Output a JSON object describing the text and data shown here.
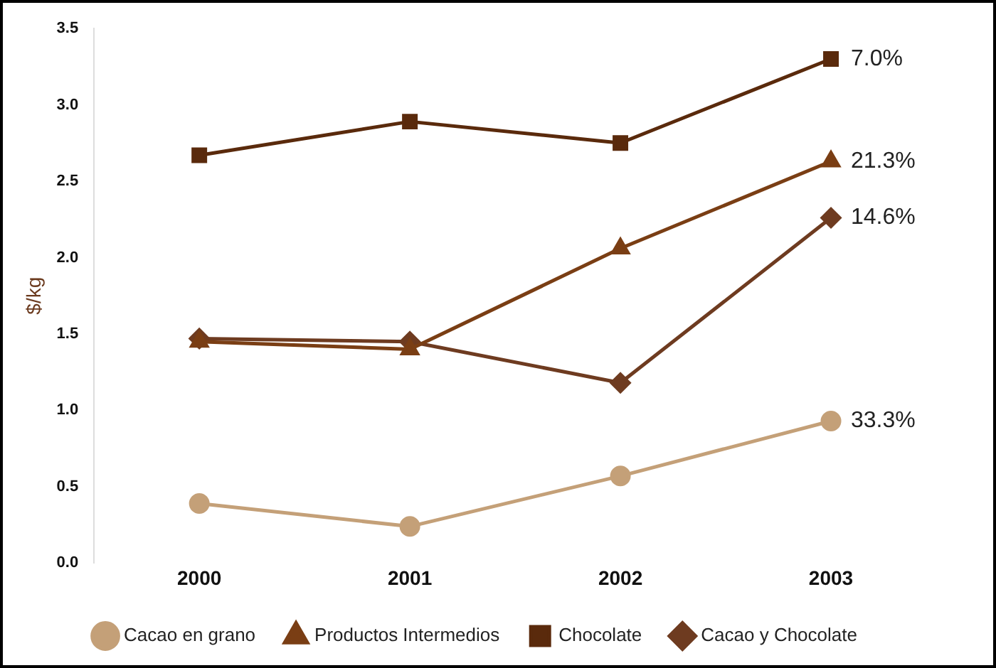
{
  "chart_data": {
    "type": "line",
    "ylabel": "$/kg",
    "categories": [
      "2000",
      "2001",
      "2002",
      "2003"
    ],
    "series": [
      {
        "name": "Cacao en grano",
        "color": "#c4a078",
        "values": [
          0.39,
          0.24,
          0.57,
          0.93
        ],
        "marker": "circle"
      },
      {
        "name": "Productos Intermedios",
        "color": "#7a3e14",
        "values": [
          1.45,
          1.4,
          2.06,
          2.63
        ],
        "marker": "triangle"
      },
      {
        "name": "Chocolate",
        "color": "#5a2a0c",
        "values": [
          2.67,
          2.89,
          2.75,
          3.3
        ],
        "marker": "square"
      },
      {
        "name": "Cacao y Chocolate",
        "color": "#6e3b20",
        "values": [
          1.47,
          1.45,
          1.18,
          2.26
        ],
        "marker": "diamond"
      }
    ],
    "ylim": [
      0,
      3.5
    ],
    "yticks": [
      {
        "value": 0,
        "label": "0.0"
      },
      {
        "value": 0.5,
        "label": "0.5"
      },
      {
        "value": 1,
        "label": "1.0"
      },
      {
        "value": 1.5,
        "label": "1.5"
      },
      {
        "value": 2,
        "label": "2.0"
      },
      {
        "value": 2.5,
        "label": "2.5"
      },
      {
        "value": 3,
        "label": "3.0"
      },
      {
        "value": 3.5,
        "label": "3.5"
      }
    ],
    "grid": false,
    "legend": "bottom",
    "line_style": "solid",
    "annotations": [
      {
        "text": "7.0%",
        "x": "2003",
        "y": 3.3
      },
      {
        "text": "21.3%",
        "x": "2003",
        "y": 2.63
      },
      {
        "text": "14.6%",
        "x": "2003",
        "y": 2.26
      },
      {
        "text": "33.3%",
        "x": "2003",
        "y": 0.93
      }
    ]
  }
}
